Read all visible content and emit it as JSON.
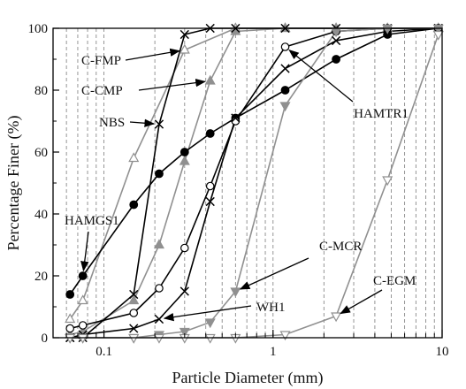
{
  "chart_data": {
    "type": "line",
    "xlabel": "Particle Diameter (mm)",
    "ylabel": "Percentage Finer (%)",
    "xscale": "log",
    "xlim": [
      0.05,
      10
    ],
    "ylim": [
      0,
      100
    ],
    "x_ticks": [
      {
        "value": 0.1,
        "label": "0.1"
      },
      {
        "value": 1,
        "label": "1"
      },
      {
        "value": 10,
        "label": "10"
      }
    ],
    "y_ticks": [
      {
        "value": 0,
        "label": "0"
      },
      {
        "value": 20,
        "label": "20"
      },
      {
        "value": 40,
        "label": "40"
      },
      {
        "value": 60,
        "label": "60"
      },
      {
        "value": 80,
        "label": "80"
      },
      {
        "value": 100,
        "label": "100"
      }
    ],
    "grid": "minor-vertical-dashed",
    "series": [
      {
        "name": "C-FMP",
        "color": "#909090",
        "marker": "triangle-up-open",
        "x": [
          0.063,
          0.075,
          0.15,
          0.3,
          0.6,
          1.18,
          2.36,
          4.75,
          9.5
        ],
        "y": [
          6,
          12,
          58,
          93,
          100,
          100,
          100,
          100,
          100
        ]
      },
      {
        "name": "C-CMP",
        "color": "#909090",
        "marker": "triangle-up-filled",
        "x": [
          0.063,
          0.075,
          0.15,
          0.212,
          0.3,
          0.425,
          0.6,
          1.18,
          2.36,
          4.75,
          9.5
        ],
        "y": [
          1,
          2,
          12,
          30,
          57,
          83,
          99,
          100,
          100,
          100,
          100
        ]
      },
      {
        "name": "NBS",
        "color": "#000000",
        "marker": "x",
        "x": [
          0.063,
          0.075,
          0.15,
          0.212,
          0.3,
          0.425,
          0.6,
          1.18,
          2.36,
          4.75,
          9.5
        ],
        "y": [
          0,
          0,
          14,
          69,
          98,
          100,
          100,
          100,
          100,
          100,
          100
        ]
      },
      {
        "name": "HAMGS1",
        "color": "#000000",
        "marker": "circle-filled",
        "x": [
          0.063,
          0.075,
          0.15,
          0.212,
          0.3,
          0.425,
          0.6,
          1.18,
          2.36,
          4.75,
          9.5
        ],
        "y": [
          14,
          20,
          43,
          53,
          60,
          66,
          71,
          80,
          90,
          98,
          100
        ]
      },
      {
        "name": "HAMTR1",
        "color": "#000000",
        "marker": "circle-open",
        "x": [
          0.063,
          0.075,
          0.15,
          0.212,
          0.3,
          0.425,
          0.6,
          1.18,
          2.36,
          4.75,
          9.5
        ],
        "y": [
          3,
          4,
          8,
          16,
          29,
          49,
          70,
          94,
          99,
          100,
          100
        ]
      },
      {
        "name": "WH1",
        "color": "#000000",
        "marker": "x",
        "x": [
          0.063,
          0.075,
          0.15,
          0.212,
          0.3,
          0.425,
          0.6,
          1.18,
          2.36,
          4.75,
          9.5
        ],
        "y": [
          0,
          1,
          3,
          6,
          15,
          44,
          71,
          87,
          96,
          99,
          100
        ]
      },
      {
        "name": "C-MCR",
        "color": "#909090",
        "marker": "triangle-down-filled",
        "x": [
          0.063,
          0.075,
          0.15,
          0.212,
          0.3,
          0.425,
          0.6,
          1.18,
          2.36,
          4.75,
          9.5
        ],
        "y": [
          0,
          0,
          0,
          1,
          2,
          5,
          15,
          75,
          99,
          100,
          100
        ]
      },
      {
        "name": "C-EGM",
        "color": "#909090",
        "marker": "triangle-down-open",
        "x": [
          0.063,
          0.075,
          0.15,
          0.212,
          0.3,
          0.425,
          0.6,
          1.18,
          2.36,
          4.75,
          9.5
        ],
        "y": [
          0,
          0,
          0,
          0,
          0,
          0,
          0,
          1,
          7,
          51,
          98
        ]
      }
    ],
    "annotations": [
      {
        "text": "C-FMP",
        "series": "C-FMP",
        "point_index": 3
      },
      {
        "text": "C-CMP",
        "series": "C-CMP",
        "point_index": 5
      },
      {
        "text": "NBS",
        "series": "NBS",
        "point_index": 3
      },
      {
        "text": "HAMTR1",
        "series": "HAMTR1",
        "point_index": 7
      },
      {
        "text": "HAMGS1",
        "series": "HAMGS1",
        "point_index": 1
      },
      {
        "text": "C-MCR",
        "series": "C-MCR",
        "point_index": 6
      },
      {
        "text": "WH1",
        "series": "WH1",
        "point_index": 3
      },
      {
        "text": "C-EGM",
        "series": "C-EGM",
        "point_index": 8
      }
    ]
  }
}
